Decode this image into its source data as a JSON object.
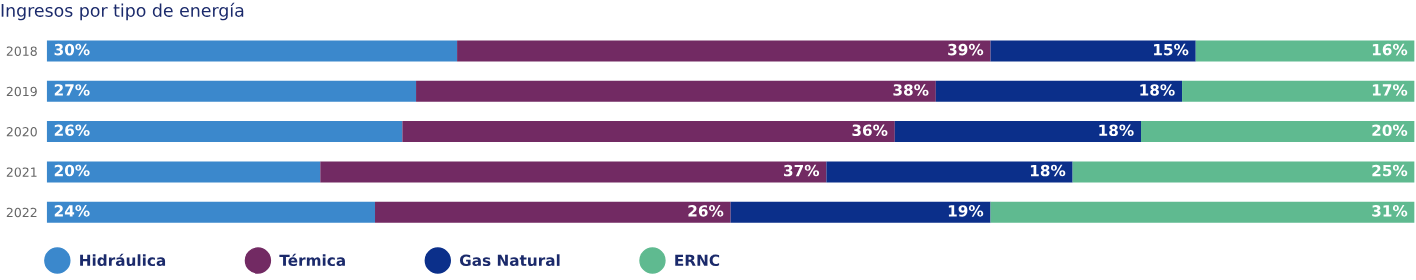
{
  "chart_data": {
    "type": "bar",
    "title": "Ingresos por tipo de energía",
    "orientation": "horizontal",
    "stacked": true,
    "categories": [
      "2018",
      "2019",
      "2020",
      "2021",
      "2022"
    ],
    "xlim": [
      0,
      100
    ],
    "tick_labels": "y",
    "legend": "bottom left",
    "marker": "circle",
    "grid": false,
    "series": [
      {
        "name": "Hidráulica",
        "color": "#3b88cc",
        "values": [
          30,
          27,
          26,
          20,
          24
        ],
        "value_labels": [
          "30%",
          "27%",
          "26%",
          "20%",
          "24%"
        ]
      },
      {
        "name": "Térmica",
        "color": "#722a63",
        "values": [
          39,
          38,
          36,
          37,
          26
        ],
        "value_labels": [
          "39%",
          "38%",
          "36%",
          "37%",
          "26%"
        ]
      },
      {
        "name": "Gas Natural",
        "color": "#0b2f8a",
        "values": [
          15,
          18,
          18,
          18,
          19
        ],
        "value_labels": [
          "15%",
          "18%",
          "18%",
          "18%",
          "19%"
        ]
      },
      {
        "name": "ERNC",
        "color": "#5fba90",
        "values": [
          16,
          17,
          20,
          25,
          31
        ],
        "value_labels": [
          "16%",
          "17%",
          "20%",
          "25%",
          "31%"
        ]
      }
    ]
  }
}
